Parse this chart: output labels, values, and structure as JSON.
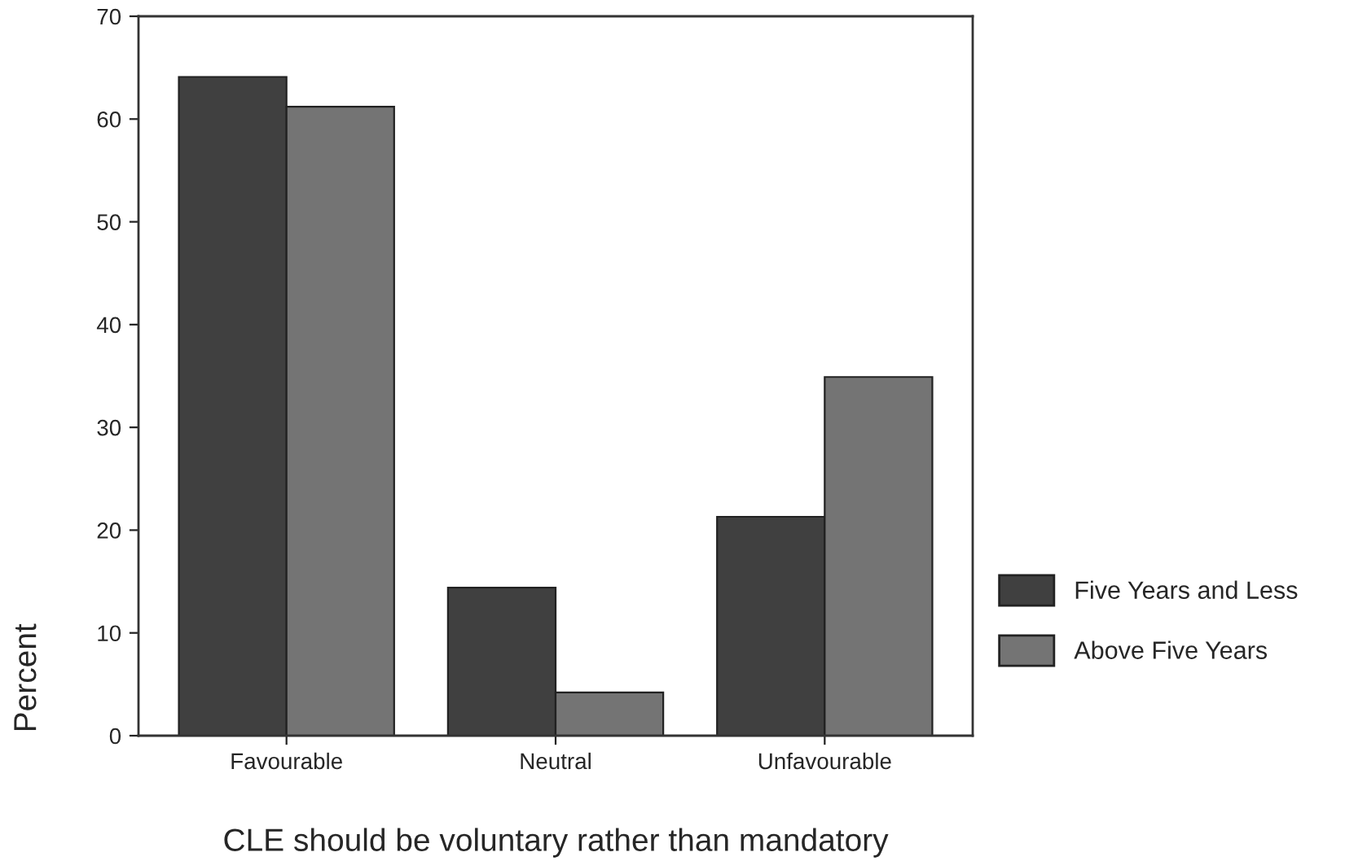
{
  "chart_data": {
    "type": "bar",
    "xlabel": "CLE should be voluntary rather than mandatory",
    "ylabel": "Percent",
    "categories": [
      "Favourable",
      "Neutral",
      "Unfavourable"
    ],
    "series": [
      {
        "name": "Five Years and Less",
        "color": "#404040",
        "values": [
          64.1,
          14.4,
          21.3
        ]
      },
      {
        "name": "Above Five Years",
        "color": "#747474",
        "values": [
          61.2,
          4.2,
          34.9
        ]
      }
    ],
    "ylim": [
      0,
      70
    ],
    "yticks": [
      0,
      10,
      20,
      30,
      40,
      50,
      60,
      70
    ],
    "grid": false,
    "legend": "right"
  }
}
